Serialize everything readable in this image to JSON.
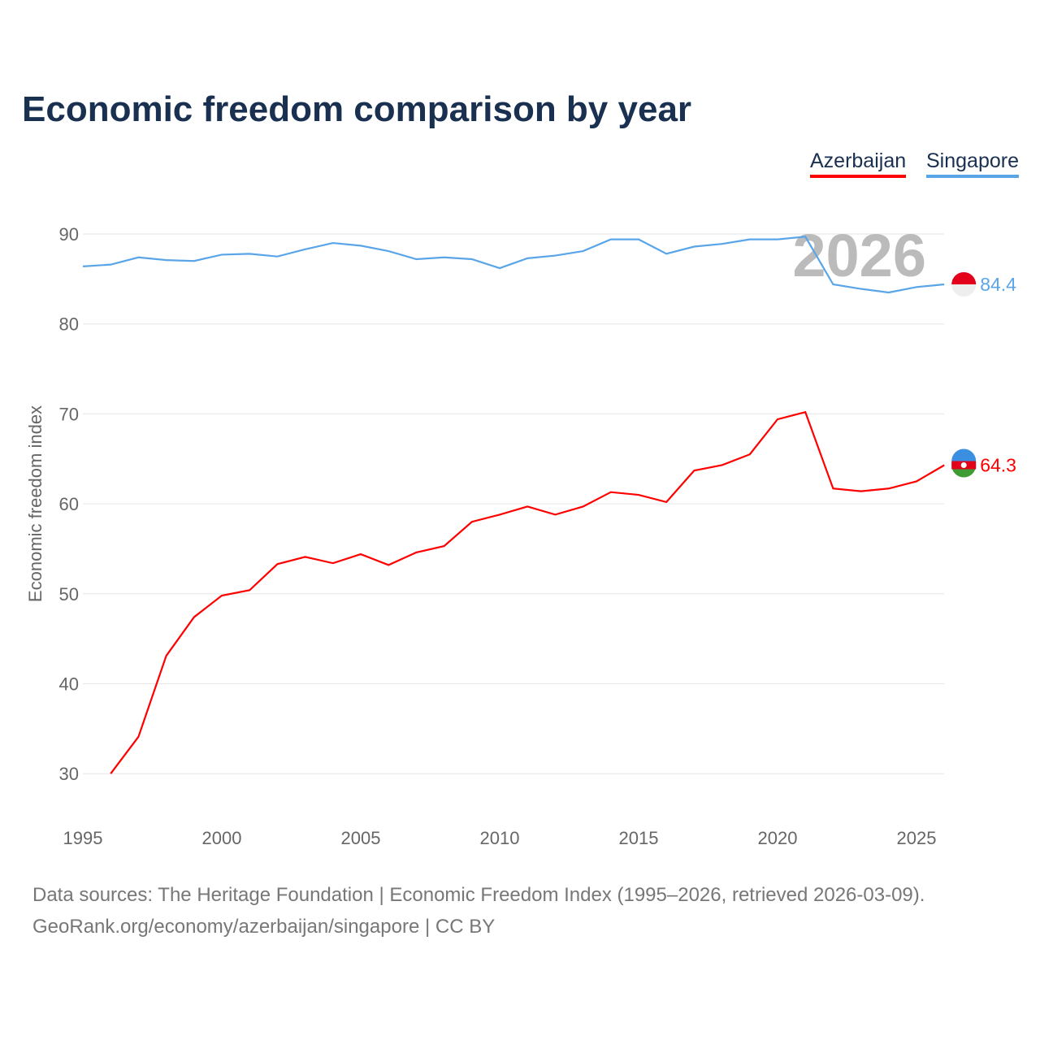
{
  "chart_data": {
    "type": "line",
    "title": "Economic freedom comparison by year",
    "ylabel": "Economic freedom index",
    "xlabel": "",
    "xlim": [
      1995,
      2026
    ],
    "ylim": [
      25,
      93
    ],
    "yticks": [
      30,
      40,
      50,
      60,
      70,
      80,
      90
    ],
    "xticks": [
      1995,
      2000,
      2005,
      2010,
      2015,
      2020,
      2025
    ],
    "grid": true,
    "legend_position": "top-right",
    "year_label": "2026",
    "series": [
      {
        "name": "Azerbaijan",
        "color": "#ff0000",
        "end_label": "64.3",
        "x": [
          1996,
          1997,
          1998,
          1999,
          2000,
          2001,
          2002,
          2003,
          2004,
          2005,
          2006,
          2007,
          2008,
          2009,
          2010,
          2011,
          2012,
          2013,
          2014,
          2015,
          2016,
          2017,
          2018,
          2019,
          2020,
          2021,
          2022,
          2023,
          2024,
          2025,
          2026
        ],
        "values": [
          30.0,
          34.1,
          43.1,
          47.4,
          49.8,
          50.4,
          53.3,
          54.1,
          53.4,
          54.4,
          53.2,
          54.6,
          55.3,
          58.0,
          58.8,
          59.7,
          58.8,
          59.7,
          61.3,
          61.0,
          60.2,
          63.7,
          64.3,
          65.5,
          69.4,
          70.2,
          61.7,
          61.4,
          61.7,
          62.5,
          64.3
        ]
      },
      {
        "name": "Singapore",
        "color": "#5aa5e8",
        "end_label": "84.4",
        "x": [
          1995,
          1996,
          1997,
          1998,
          1999,
          2000,
          2001,
          2002,
          2003,
          2004,
          2005,
          2006,
          2007,
          2008,
          2009,
          2010,
          2011,
          2012,
          2013,
          2014,
          2015,
          2016,
          2017,
          2018,
          2019,
          2020,
          2021,
          2022,
          2023,
          2024,
          2025,
          2026
        ],
        "values": [
          86.4,
          86.6,
          87.4,
          87.1,
          87.0,
          87.7,
          87.8,
          87.5,
          88.3,
          89.0,
          88.7,
          88.1,
          87.2,
          87.4,
          87.2,
          86.2,
          87.3,
          87.6,
          88.1,
          89.4,
          89.4,
          87.8,
          88.6,
          88.9,
          89.4,
          89.4,
          89.7,
          84.4,
          83.9,
          83.5,
          84.1,
          84.4
        ]
      }
    ]
  },
  "footer": {
    "line1": "Data sources: The Heritage Foundation | Economic Freedom Index (1995–2026, retrieved 2026-03-09).",
    "line2": "GeoRank.org/economy/azerbaijan/singapore | CC BY"
  }
}
